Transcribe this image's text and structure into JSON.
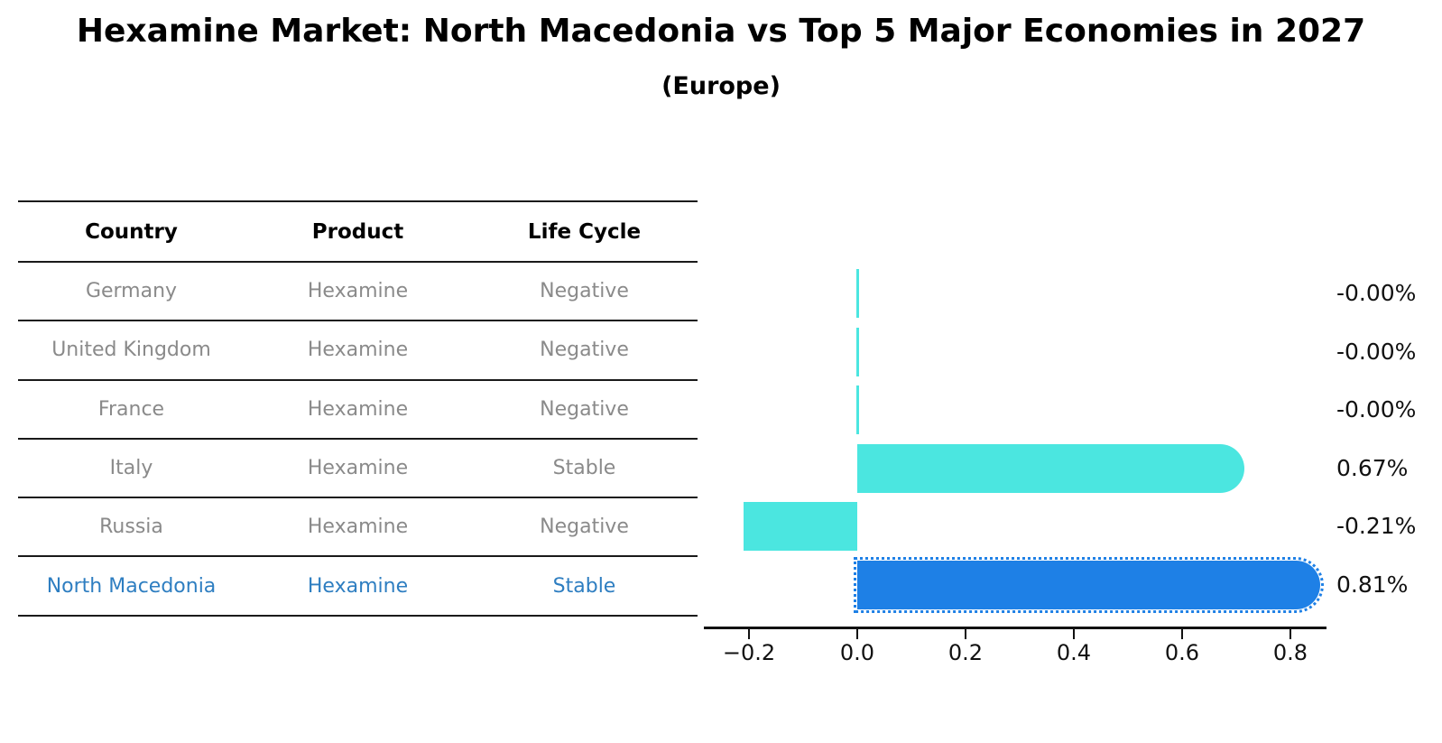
{
  "title": "Hexamine Market: North Macedonia vs Top 5 Major Economies in 2027",
  "subtitle": "(Europe)",
  "table": {
    "columns": [
      "Country",
      "Product",
      "Life Cycle"
    ],
    "rows": [
      {
        "country": "Germany",
        "product": "Hexamine",
        "life_cycle": "Negative",
        "highlighted": false
      },
      {
        "country": "United Kingdom",
        "product": "Hexamine",
        "life_cycle": "Negative",
        "highlighted": false
      },
      {
        "country": "France",
        "product": "Hexamine",
        "life_cycle": "Negative",
        "highlighted": false
      },
      {
        "country": "Italy",
        "product": "Hexamine",
        "life_cycle": "Stable",
        "highlighted": false
      },
      {
        "country": "Russia",
        "product": "Hexamine",
        "life_cycle": "Negative",
        "highlighted": false
      },
      {
        "country": "North Macedonia",
        "product": "Hexamine",
        "life_cycle": "Stable",
        "highlighted": true
      }
    ]
  },
  "chart_data": {
    "type": "bar",
    "orientation": "horizontal",
    "title": "Hexamine Market: North Macedonia vs Top 5 Major Economies in 2027",
    "subtitle": "(Europe)",
    "categories": [
      "Germany",
      "United Kingdom",
      "France",
      "Italy",
      "Russia",
      "North Macedonia"
    ],
    "values": [
      -0.0,
      -0.0,
      -0.0,
      0.67,
      -0.21,
      0.81
    ],
    "value_labels": [
      "-0.00%",
      "-0.00%",
      "-0.00%",
      "0.67%",
      "-0.21%",
      "0.81%"
    ],
    "x_ticks": [
      -0.2,
      0.0,
      0.2,
      0.4,
      0.6,
      0.8
    ],
    "x_tick_labels": [
      "−0.2",
      "0.0",
      "0.2",
      "0.4",
      "0.6",
      "0.8"
    ],
    "xlim": [
      -0.283,
      0.867
    ],
    "xlabel": "",
    "ylabel": "",
    "grid": false,
    "legend": false,
    "highlight_category": "North Macedonia",
    "colors": {
      "default_bar": "#4be6e0",
      "highlight_bar": "#1e80e6",
      "highlight_text": "#2e7ec1",
      "row_text": "#8a8a8a",
      "axis": "#111111"
    }
  }
}
